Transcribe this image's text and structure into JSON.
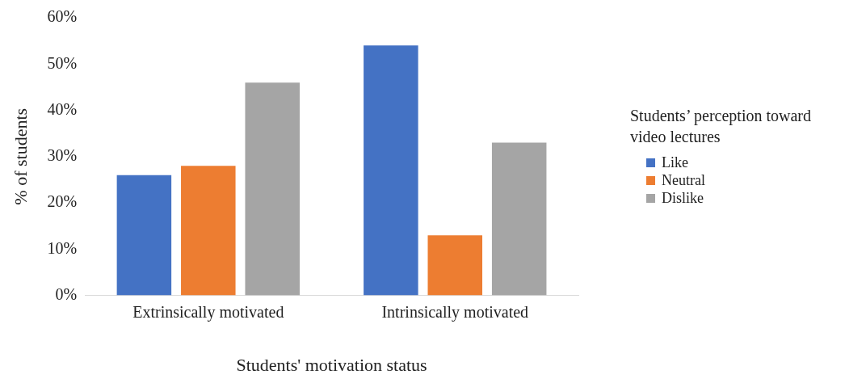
{
  "chart_data": {
    "type": "bar",
    "xlabel": "Students' motivation status",
    "ylabel": "% of students",
    "legend_title": "Students’ perception toward video lectures",
    "categories": [
      "Extrinsically motivated",
      "Intrinsically motivated"
    ],
    "series": [
      {
        "name": "Like",
        "color": "#4472c4",
        "values": [
          26,
          54
        ]
      },
      {
        "name": "Neutral",
        "color": "#ed7d31",
        "values": [
          28,
          13
        ]
      },
      {
        "name": "Dislike",
        "color": "#a5a5a5",
        "values": [
          46,
          33
        ]
      }
    ],
    "ylim": [
      0,
      60
    ],
    "yticks": [
      {
        "value": 0,
        "label": "0%"
      },
      {
        "value": 10,
        "label": "10%"
      },
      {
        "value": 20,
        "label": "20%"
      },
      {
        "value": 30,
        "label": "30%"
      },
      {
        "value": 40,
        "label": "40%"
      },
      {
        "value": 50,
        "label": "50%"
      },
      {
        "value": 60,
        "label": "60%"
      }
    ],
    "grid": false,
    "legend": "right"
  }
}
